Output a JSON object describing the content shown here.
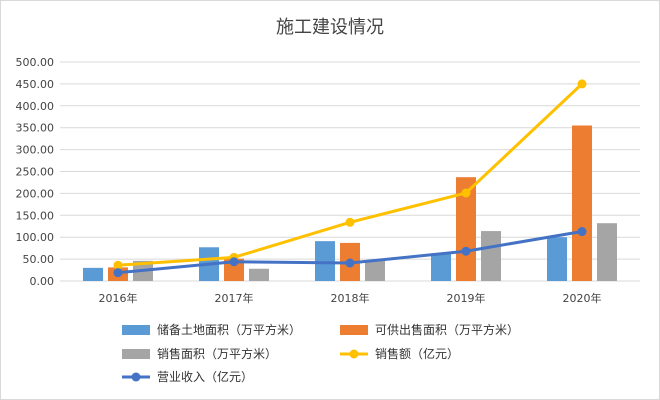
{
  "chart_data": {
    "type": "bar",
    "title": "施工建设情况",
    "categories": [
      "2016年",
      "2017年",
      "2018年",
      "2019年",
      "2020年"
    ],
    "ylim": [
      0,
      500
    ],
    "y_ticks": [
      "0.00",
      "50.00",
      "100.00",
      "150.00",
      "200.00",
      "250.00",
      "300.00",
      "350.00",
      "400.00",
      "450.00",
      "500.00"
    ],
    "grid": true,
    "legend_position": "bottom",
    "series": [
      {
        "name": "储备土地面积（万平方米）",
        "kind": "bar",
        "color": "#5B9BD5",
        "values": [
          30,
          77,
          91,
          63,
          100
        ]
      },
      {
        "name": "可供出售面积（万平方米）",
        "kind": "bar",
        "color": "#ED7D31",
        "values": [
          31,
          51,
          87,
          237,
          355
        ]
      },
      {
        "name": "销售面积（万平方米）",
        "kind": "bar",
        "color": "#A5A5A5",
        "values": [
          46,
          28,
          48,
          114,
          132
        ]
      },
      {
        "name": "销售额（亿元）",
        "kind": "line",
        "color": "#FFC000",
        "values": [
          36,
          54,
          134,
          201,
          450
        ]
      },
      {
        "name": "营业收入（亿元）",
        "kind": "line",
        "color": "#4472C4",
        "values": [
          19,
          44,
          41,
          68,
          113
        ]
      }
    ]
  }
}
